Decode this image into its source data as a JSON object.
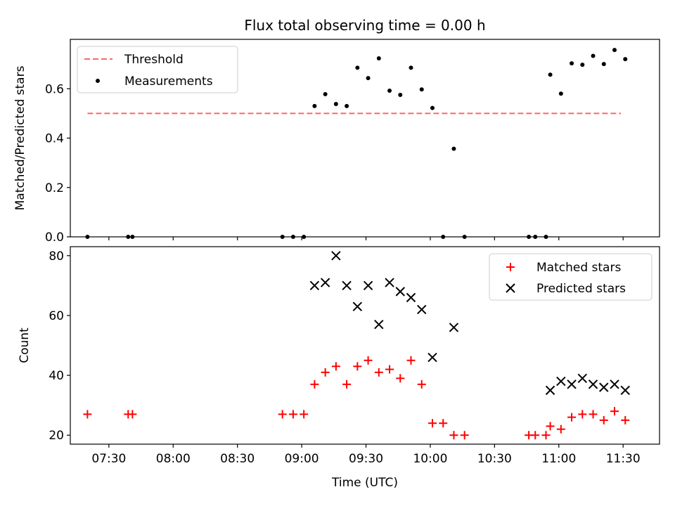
{
  "title": "Flux total observing time = 0.00 h",
  "chart_data": [
    {
      "type": "scatter",
      "panel": "top",
      "ylabel": "Matched/Predicted stars",
      "xlim": [
        "07:12",
        "11:47"
      ],
      "ylim": [
        0.0,
        0.8
      ],
      "yticks": [
        0.0,
        0.2,
        0.4,
        0.6
      ],
      "yticks_text": [
        "0.0",
        "0.2",
        "0.4",
        "0.6"
      ],
      "legend": "top-left",
      "threshold": {
        "name": "Threshold",
        "color": "#ff6666",
        "value": 0.5,
        "x_start": "07:20",
        "x_end": "11:29"
      },
      "series": [
        {
          "name": "Measurements",
          "color": "#000000",
          "marker": "dot",
          "points": [
            [
              "07:20",
              0.0
            ],
            [
              "07:39",
              0.0
            ],
            [
              "07:41",
              0.0
            ],
            [
              "08:51",
              0.0
            ],
            [
              "08:56",
              0.0
            ],
            [
              "09:01",
              0.0
            ],
            [
              "09:06",
              0.53
            ],
            [
              "09:11",
              0.578
            ],
            [
              "09:16",
              0.538
            ],
            [
              "09:21",
              0.53
            ],
            [
              "09:26",
              0.685
            ],
            [
              "09:31",
              0.643
            ],
            [
              "09:36",
              0.723
            ],
            [
              "09:41",
              0.592
            ],
            [
              "09:46",
              0.575
            ],
            [
              "09:51",
              0.685
            ],
            [
              "09:56",
              0.597
            ],
            [
              "10:01",
              0.522
            ],
            [
              "10:06",
              0.0
            ],
            [
              "10:11",
              0.357
            ],
            [
              "10:16",
              0.0
            ],
            [
              "10:46",
              0.0
            ],
            [
              "10:49",
              0.0
            ],
            [
              "10:54",
              0.0
            ],
            [
              "10:56",
              0.657
            ],
            [
              "11:01",
              0.58
            ],
            [
              "11:06",
              0.703
            ],
            [
              "11:11",
              0.697
            ],
            [
              "11:16",
              0.733
            ],
            [
              "11:21",
              0.7
            ],
            [
              "11:26",
              0.757
            ],
            [
              "11:31",
              0.72
            ]
          ]
        }
      ]
    },
    {
      "type": "scatter",
      "panel": "bottom",
      "xlabel": "Time (UTC)",
      "ylabel": "Count",
      "xlim": [
        "07:12",
        "11:47"
      ],
      "ylim": [
        17,
        83
      ],
      "yticks": [
        20,
        40,
        60,
        80
      ],
      "yticks_text": [
        "20",
        "40",
        "60",
        "80"
      ],
      "xticks": [
        "07:30",
        "08:00",
        "08:30",
        "09:00",
        "09:30",
        "10:00",
        "10:30",
        "11:00",
        "11:30"
      ],
      "legend": "top-right",
      "series": [
        {
          "name": "Matched stars",
          "color": "#ff0000",
          "marker": "plus",
          "points": [
            [
              "07:20",
              27
            ],
            [
              "07:39",
              27
            ],
            [
              "07:41",
              27
            ],
            [
              "08:51",
              27
            ],
            [
              "08:56",
              27
            ],
            [
              "09:01",
              27
            ],
            [
              "09:06",
              37
            ],
            [
              "09:11",
              41
            ],
            [
              "09:16",
              43
            ],
            [
              "09:21",
              37
            ],
            [
              "09:26",
              43
            ],
            [
              "09:31",
              45
            ],
            [
              "09:36",
              41
            ],
            [
              "09:41",
              42
            ],
            [
              "09:46",
              39
            ],
            [
              "09:51",
              45
            ],
            [
              "09:56",
              37
            ],
            [
              "10:01",
              24
            ],
            [
              "10:06",
              24
            ],
            [
              "10:11",
              20
            ],
            [
              "10:16",
              20
            ],
            [
              "10:46",
              20
            ],
            [
              "10:49",
              20
            ],
            [
              "10:54",
              20
            ],
            [
              "10:56",
              23
            ],
            [
              "11:01",
              22
            ],
            [
              "11:06",
              26
            ],
            [
              "11:11",
              27
            ],
            [
              "11:16",
              27
            ],
            [
              "11:21",
              25
            ],
            [
              "11:26",
              28
            ],
            [
              "11:31",
              25
            ]
          ]
        },
        {
          "name": "Predicted stars",
          "color": "#000000",
          "marker": "x",
          "points": [
            [
              "09:06",
              70
            ],
            [
              "09:11",
              71
            ],
            [
              "09:16",
              80
            ],
            [
              "09:21",
              70
            ],
            [
              "09:26",
              63
            ],
            [
              "09:31",
              70
            ],
            [
              "09:36",
              57
            ],
            [
              "09:41",
              71
            ],
            [
              "09:46",
              68
            ],
            [
              "09:51",
              66
            ],
            [
              "09:56",
              62
            ],
            [
              "10:01",
              46
            ],
            [
              "10:11",
              56
            ],
            [
              "10:56",
              35
            ],
            [
              "11:01",
              38
            ],
            [
              "11:06",
              37
            ],
            [
              "11:11",
              39
            ],
            [
              "11:16",
              37
            ],
            [
              "11:21",
              36
            ],
            [
              "11:26",
              37
            ],
            [
              "11:31",
              35
            ]
          ]
        }
      ]
    }
  ]
}
